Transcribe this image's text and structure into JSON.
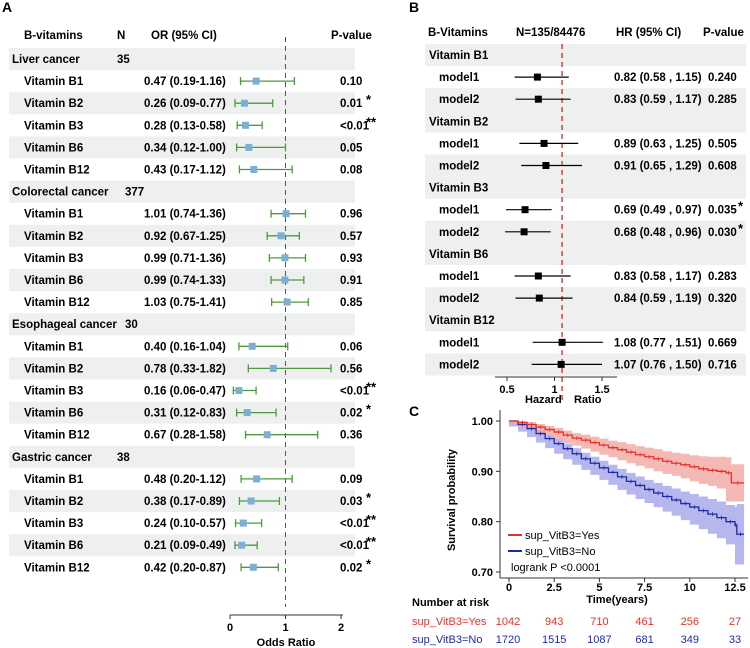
{
  "colors": {
    "panel_a_marker": "#7bafd4",
    "panel_a_ci": "#4d9a3c",
    "panel_b_marker": "#000000",
    "panel_b_ref": "#d62728",
    "stripe": "#eef0ef",
    "km_yes": "#e8302a",
    "km_yes_band": "#f3a7a2",
    "km_no": "#1f2aa8",
    "km_no_band": "#a9abea"
  },
  "panel_a": {
    "label": "A",
    "col_vitamin": "B-vitamins",
    "col_n": "N",
    "col_or": "OR (95% CI)",
    "col_p": "P-value",
    "groups": [
      {
        "name": "Liver cancer",
        "n": "35",
        "rows": [
          {
            "vitamin": "Vitamin B1",
            "or_text": "0.47 (0.19-1.16)",
            "p": "0.10",
            "sig": "",
            "or": 0.47,
            "lo": 0.19,
            "hi": 1.16
          },
          {
            "vitamin": "Vitamin B2",
            "or_text": "0.26 (0.09-0.77)",
            "p": "0.01",
            "sig": "*",
            "or": 0.26,
            "lo": 0.09,
            "hi": 0.77
          },
          {
            "vitamin": "Vitamin B3",
            "or_text": "0.28 (0.13-0.58)",
            "p": "<0.01",
            "sig": "**",
            "or": 0.28,
            "lo": 0.13,
            "hi": 0.58
          },
          {
            "vitamin": "Vitamin B6",
            "or_text": "0.34 (0.12-1.00)",
            "p": "0.05",
            "sig": "",
            "or": 0.34,
            "lo": 0.12,
            "hi": 1.0
          },
          {
            "vitamin": "Vitamin B12",
            "or_text": "0.43 (0.17-1.12)",
            "p": "0.08",
            "sig": "",
            "or": 0.43,
            "lo": 0.17,
            "hi": 1.12
          }
        ]
      },
      {
        "name": "Colorectal cancer",
        "n": "377",
        "rows": [
          {
            "vitamin": "Vitamin B1",
            "or_text": "1.01 (0.74-1.36)",
            "p": "0.96",
            "sig": "",
            "or": 1.01,
            "lo": 0.74,
            "hi": 1.36
          },
          {
            "vitamin": "Vitamin B2",
            "or_text": "0.92 (0.67-1.25)",
            "p": "0.57",
            "sig": "",
            "or": 0.92,
            "lo": 0.67,
            "hi": 1.25
          },
          {
            "vitamin": "Vitamin B3",
            "or_text": "0.99 (0.71-1.36)",
            "p": "0.93",
            "sig": "",
            "or": 0.99,
            "lo": 0.71,
            "hi": 1.36
          },
          {
            "vitamin": "Vitamin B6",
            "or_text": "0.99 (0.74-1.33)",
            "p": "0.91",
            "sig": "",
            "or": 0.99,
            "lo": 0.74,
            "hi": 1.33
          },
          {
            "vitamin": "Vitamin B12",
            "or_text": "1.03 (0.75-1.41)",
            "p": "0.85",
            "sig": "",
            "or": 1.03,
            "lo": 0.75,
            "hi": 1.41
          }
        ]
      },
      {
        "name": "Esophageal cancer",
        "n": "30",
        "rows": [
          {
            "vitamin": "Vitamin B1",
            "or_text": "0.40 (0.16-1.04)",
            "p": "0.06",
            "sig": "",
            "or": 0.4,
            "lo": 0.16,
            "hi": 1.04
          },
          {
            "vitamin": "Vitamin B2",
            "or_text": "0.78 (0.33-1.82)",
            "p": "0.56",
            "sig": "",
            "or": 0.78,
            "lo": 0.33,
            "hi": 1.82
          },
          {
            "vitamin": "Vitamin B3",
            "or_text": "0.16 (0.06-0.47)",
            "p": "<0.01",
            "sig": "**",
            "or": 0.16,
            "lo": 0.06,
            "hi": 0.47
          },
          {
            "vitamin": "Vitamin B6",
            "or_text": "0.31 (0.12-0.83)",
            "p": "0.02",
            "sig": "*",
            "or": 0.31,
            "lo": 0.12,
            "hi": 0.83
          },
          {
            "vitamin": "Vitamin B12",
            "or_text": "0.67 (0.28-1.58)",
            "p": "0.36",
            "sig": "",
            "or": 0.67,
            "lo": 0.28,
            "hi": 1.58
          }
        ]
      },
      {
        "name": "Gastric cancer",
        "n": "38",
        "rows": [
          {
            "vitamin": "Vitamin B1",
            "or_text": "0.48 (0.20-1.12)",
            "p": "0.09",
            "sig": "",
            "or": 0.48,
            "lo": 0.2,
            "hi": 1.12
          },
          {
            "vitamin": "Vitamin B2",
            "or_text": "0.38 (0.17-0.89)",
            "p": "0.03",
            "sig": "*",
            "or": 0.38,
            "lo": 0.17,
            "hi": 0.89
          },
          {
            "vitamin": "Vitamin B3",
            "or_text": "0.24 (0.10-0.57)",
            "p": "<0.01",
            "sig": "**",
            "or": 0.24,
            "lo": 0.1,
            "hi": 0.57
          },
          {
            "vitamin": "Vitamin B6",
            "or_text": "0.21 (0.09-0.49)",
            "p": "<0.01",
            "sig": "**",
            "or": 0.21,
            "lo": 0.09,
            "hi": 0.49
          },
          {
            "vitamin": "Vitamin B12",
            "or_text": "0.42 (0.20-0.87)",
            "p": "0.02",
            "sig": "*",
            "or": 0.42,
            "lo": 0.2,
            "hi": 0.87
          }
        ]
      }
    ],
    "axis_ticks": [
      "0",
      "1",
      "2"
    ],
    "xlim": [
      0,
      2
    ],
    "ref_value": 1,
    "axis_label": "Odds Ratio"
  },
  "panel_b": {
    "label": "B",
    "col_vitamin": "B-Vitamins",
    "col_n": "N=135/84476",
    "col_hr": "HR (95% CI)",
    "col_p": "P-value",
    "groups": [
      {
        "name": "Vitamin B1",
        "rows": [
          {
            "model": "model1",
            "hr_text": "0.82 (0.58 , 1.15)",
            "p": "0.240",
            "sig": "",
            "hr": 0.82,
            "lo": 0.58,
            "hi": 1.15
          },
          {
            "model": "model2",
            "hr_text": "0.83 (0.59 , 1.17)",
            "p": "0.285",
            "sig": "",
            "hr": 0.83,
            "lo": 0.59,
            "hi": 1.17
          }
        ]
      },
      {
        "name": "Vitamin B2",
        "rows": [
          {
            "model": "model1",
            "hr_text": "0.89 (0.63 , 1.25)",
            "p": "0.505",
            "sig": "",
            "hr": 0.89,
            "lo": 0.63,
            "hi": 1.25
          },
          {
            "model": "model2",
            "hr_text": "0.91 (0.65 , 1.29)",
            "p": "0.608",
            "sig": "",
            "hr": 0.91,
            "lo": 0.65,
            "hi": 1.29
          }
        ]
      },
      {
        "name": "Vitamin B3",
        "rows": [
          {
            "model": "model1",
            "hr_text": "0.69 (0.49 , 0.97)",
            "p": "0.035",
            "sig": "*",
            "hr": 0.69,
            "lo": 0.49,
            "hi": 0.97
          },
          {
            "model": "model2",
            "hr_text": "0.68 (0.48 , 0.96)",
            "p": "0.030",
            "sig": "*",
            "hr": 0.68,
            "lo": 0.48,
            "hi": 0.96
          }
        ]
      },
      {
        "name": "Vitamin B6",
        "rows": [
          {
            "model": "model1",
            "hr_text": "0.83 (0.58 , 1.17)",
            "p": "0.283",
            "sig": "",
            "hr": 0.83,
            "lo": 0.58,
            "hi": 1.17
          },
          {
            "model": "model2",
            "hr_text": "0.84 (0.59 , 1.19)",
            "p": "0.320",
            "sig": "",
            "hr": 0.84,
            "lo": 0.59,
            "hi": 1.19
          }
        ]
      },
      {
        "name": "Vitamin B12",
        "rows": [
          {
            "model": "model1",
            "hr_text": "1.08 (0.77 , 1.51)",
            "p": "0.669",
            "sig": "",
            "hr": 1.08,
            "lo": 0.77,
            "hi": 1.51
          },
          {
            "model": "model2",
            "hr_text": "1.07 (0.76 , 1.50)",
            "p": "0.716",
            "sig": "",
            "hr": 1.07,
            "lo": 0.76,
            "hi": 1.5
          }
        ]
      }
    ],
    "axis_ticks": [
      "0.5",
      "1",
      "1.5"
    ],
    "tick_values": [
      0.5,
      1,
      1.5
    ],
    "xlim": [
      0.4,
      1.65
    ],
    "ref_value": 1.08,
    "axis_label_1": "Hazard",
    "axis_label_2": "Ratio"
  },
  "panel_c": {
    "label": "C",
    "ylabel": "Survival probability",
    "xlabel": "Time(years)",
    "y_ticks": [
      "0.70",
      "0.80",
      "0.90",
      "1.00"
    ],
    "y_tick_values": [
      0.7,
      0.8,
      0.9,
      1.0
    ],
    "x_ticks": [
      "0",
      "2.5",
      "5",
      "7.5",
      "10",
      "12.5"
    ],
    "x_tick_values": [
      0,
      2.5,
      5,
      7.5,
      10,
      12.5
    ],
    "xlim": [
      -0.5,
      13.2
    ],
    "ylim": [
      0.69,
      1.01
    ],
    "legend_yes": "sup_VitB3=Yes",
    "legend_no": "sup_VitB3=No",
    "logrank": "logrank P <0.0001",
    "risk_title": "Number at risk",
    "risk_yes_label": "sup_VitB3=Yes",
    "risk_no_label": "sup_VitB3=No",
    "risk_yes": [
      "1042",
      "943",
      "710",
      "461",
      "256",
      "27"
    ],
    "risk_no": [
      "1720",
      "1515",
      "1087",
      "681",
      "349",
      "33"
    ]
  },
  "chart_data": [
    {
      "type": "forest",
      "title": "A",
      "xlabel": "Odds Ratio",
      "xlim": [
        0,
        2
      ],
      "reference": 1,
      "series": [
        {
          "name": "Liver cancer",
          "categories": [
            "Vitamin B1",
            "Vitamin B2",
            "Vitamin B3",
            "Vitamin B6",
            "Vitamin B12"
          ],
          "values": [
            0.47,
            0.26,
            0.28,
            0.34,
            0.43
          ],
          "lower": [
            0.19,
            0.09,
            0.13,
            0.12,
            0.17
          ],
          "upper": [
            1.16,
            0.77,
            0.58,
            1.0,
            1.12
          ]
        },
        {
          "name": "Colorectal cancer",
          "categories": [
            "Vitamin B1",
            "Vitamin B2",
            "Vitamin B3",
            "Vitamin B6",
            "Vitamin B12"
          ],
          "values": [
            1.01,
            0.92,
            0.99,
            0.99,
            1.03
          ],
          "lower": [
            0.74,
            0.67,
            0.71,
            0.74,
            0.75
          ],
          "upper": [
            1.36,
            1.25,
            1.36,
            1.33,
            1.41
          ]
        },
        {
          "name": "Esophageal cancer",
          "categories": [
            "Vitamin B1",
            "Vitamin B2",
            "Vitamin B3",
            "Vitamin B6",
            "Vitamin B12"
          ],
          "values": [
            0.4,
            0.78,
            0.16,
            0.31,
            0.67
          ],
          "lower": [
            0.16,
            0.33,
            0.06,
            0.12,
            0.28
          ],
          "upper": [
            1.04,
            1.82,
            0.47,
            0.83,
            1.58
          ]
        },
        {
          "name": "Gastric cancer",
          "categories": [
            "Vitamin B1",
            "Vitamin B2",
            "Vitamin B3",
            "Vitamin B6",
            "Vitamin B12"
          ],
          "values": [
            0.48,
            0.38,
            0.24,
            0.21,
            0.42
          ],
          "lower": [
            0.2,
            0.17,
            0.1,
            0.09,
            0.2
          ],
          "upper": [
            1.12,
            0.89,
            0.57,
            0.49,
            0.87
          ]
        }
      ]
    },
    {
      "type": "forest",
      "title": "B",
      "xlabel": "Hazard Ratio",
      "xlim": [
        0.4,
        1.65
      ],
      "reference": 1.08,
      "series": [
        {
          "name": "model1",
          "categories": [
            "Vitamin B1",
            "Vitamin B2",
            "Vitamin B3",
            "Vitamin B6",
            "Vitamin B12"
          ],
          "values": [
            0.82,
            0.89,
            0.69,
            0.83,
            1.08
          ],
          "lower": [
            0.58,
            0.63,
            0.49,
            0.58,
            0.77
          ],
          "upper": [
            1.15,
            1.25,
            0.97,
            1.17,
            1.51
          ]
        },
        {
          "name": "model2",
          "categories": [
            "Vitamin B1",
            "Vitamin B2",
            "Vitamin B3",
            "Vitamin B6",
            "Vitamin B12"
          ],
          "values": [
            0.83,
            0.91,
            0.68,
            0.84,
            1.07
          ],
          "lower": [
            0.59,
            0.65,
            0.48,
            0.59,
            0.76
          ],
          "upper": [
            1.17,
            1.29,
            0.96,
            1.19,
            1.5
          ]
        }
      ]
    },
    {
      "type": "line",
      "title": "C",
      "xlabel": "Time(years)",
      "ylabel": "Survival probability",
      "xlim": [
        -0.5,
        13.2
      ],
      "ylim": [
        0.69,
        1.01
      ],
      "series": [
        {
          "name": "sup_VitB3=Yes",
          "x": [
            0,
            0.5,
            1,
            1.5,
            2,
            2.5,
            3,
            3.5,
            4,
            4.5,
            5,
            5.5,
            6,
            6.5,
            7,
            7.5,
            8,
            8.5,
            9,
            9.5,
            10,
            10.5,
            11,
            11.5,
            12,
            12.3,
            13
          ],
          "y": [
            1.0,
            0.997,
            0.993,
            0.988,
            0.983,
            0.978,
            0.972,
            0.966,
            0.962,
            0.957,
            0.952,
            0.947,
            0.943,
            0.938,
            0.933,
            0.929,
            0.925,
            0.92,
            0.916,
            0.913,
            0.909,
            0.905,
            0.902,
            0.9,
            0.897,
            0.877,
            0.877
          ],
          "lower": [
            1.0,
            0.994,
            0.988,
            0.982,
            0.976,
            0.97,
            0.963,
            0.956,
            0.951,
            0.945,
            0.939,
            0.933,
            0.928,
            0.922,
            0.916,
            0.911,
            0.906,
            0.9,
            0.895,
            0.891,
            0.886,
            0.88,
            0.875,
            0.871,
            0.866,
            0.84,
            0.84
          ],
          "upper": [
            1.0,
            1.0,
            0.998,
            0.994,
            0.99,
            0.986,
            0.981,
            0.976,
            0.973,
            0.969,
            0.965,
            0.961,
            0.958,
            0.954,
            0.95,
            0.947,
            0.944,
            0.94,
            0.937,
            0.935,
            0.932,
            0.93,
            0.929,
            0.929,
            0.928,
            0.914,
            0.914
          ]
        },
        {
          "name": "sup_VitB3=No",
          "x": [
            0,
            0.5,
            1,
            1.5,
            2,
            2.5,
            3,
            3.5,
            4,
            4.5,
            5,
            5.5,
            6,
            6.5,
            7,
            7.5,
            8,
            8.5,
            9,
            9.5,
            10,
            10.5,
            11,
            11.5,
            12,
            12.5,
            12.6,
            13
          ],
          "y": [
            1.0,
            0.993,
            0.985,
            0.975,
            0.965,
            0.955,
            0.945,
            0.935,
            0.925,
            0.916,
            0.907,
            0.898,
            0.889,
            0.88,
            0.872,
            0.864,
            0.857,
            0.85,
            0.843,
            0.836,
            0.829,
            0.822,
            0.815,
            0.808,
            0.8,
            0.793,
            0.775,
            0.775
          ],
          "lower": [
            1.0,
            0.989,
            0.979,
            0.968,
            0.957,
            0.946,
            0.935,
            0.924,
            0.913,
            0.903,
            0.893,
            0.883,
            0.873,
            0.863,
            0.854,
            0.845,
            0.837,
            0.829,
            0.82,
            0.812,
            0.803,
            0.794,
            0.785,
            0.776,
            0.767,
            0.755,
            0.715,
            0.715
          ],
          "upper": [
            1.0,
            0.997,
            0.991,
            0.982,
            0.973,
            0.964,
            0.955,
            0.946,
            0.937,
            0.929,
            0.921,
            0.913,
            0.905,
            0.897,
            0.89,
            0.883,
            0.877,
            0.871,
            0.866,
            0.86,
            0.855,
            0.85,
            0.845,
            0.84,
            0.833,
            0.83,
            0.835,
            0.835
          ]
        }
      ]
    }
  ]
}
